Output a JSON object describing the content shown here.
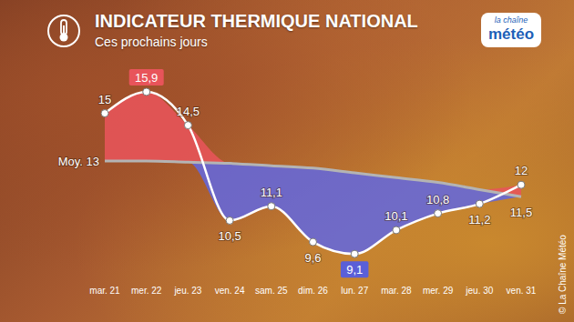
{
  "chart_data": {
    "type": "line",
    "title": "INDICATEUR THERMIQUE NATIONAL",
    "subtitle": "Ces prochains jours",
    "categories": [
      "mar. 21",
      "mer. 22",
      "jeu. 23",
      "ven. 24",
      "sam. 25",
      "dim. 26",
      "lun. 27",
      "mar. 28",
      "mer. 29",
      "jeu. 30",
      "ven. 31"
    ],
    "series": [
      {
        "color": "#ffffff",
        "values": [
          15,
          15.9,
          14.5,
          10.5,
          11.1,
          9.6,
          9.1,
          10.1,
          10.8,
          11.2,
          12
        ],
        "value_labels": [
          "15",
          "15,9",
          "14,5",
          "10,5",
          "11,1",
          "9,6",
          "9,1",
          "10,1",
          "10,8",
          "11,2",
          "12"
        ],
        "data_labels": true
      },
      {
        "color": "#b4b4b4",
        "values": [
          13,
          13,
          12.95,
          12.9,
          12.8,
          12.7,
          12.5,
          12.3,
          12.1,
          11.8,
          11.5
        ],
        "value_labels": [
          null,
          null,
          null,
          null,
          null,
          null,
          null,
          null,
          null,
          null,
          "11,5"
        ],
        "data_labels": true
      }
    ],
    "annotations": [
      "Moy. 13",
      "la chaîne",
      "météo",
      "© La Chaîne Météo"
    ],
    "tick_labels": "x",
    "grid": false
  }
}
